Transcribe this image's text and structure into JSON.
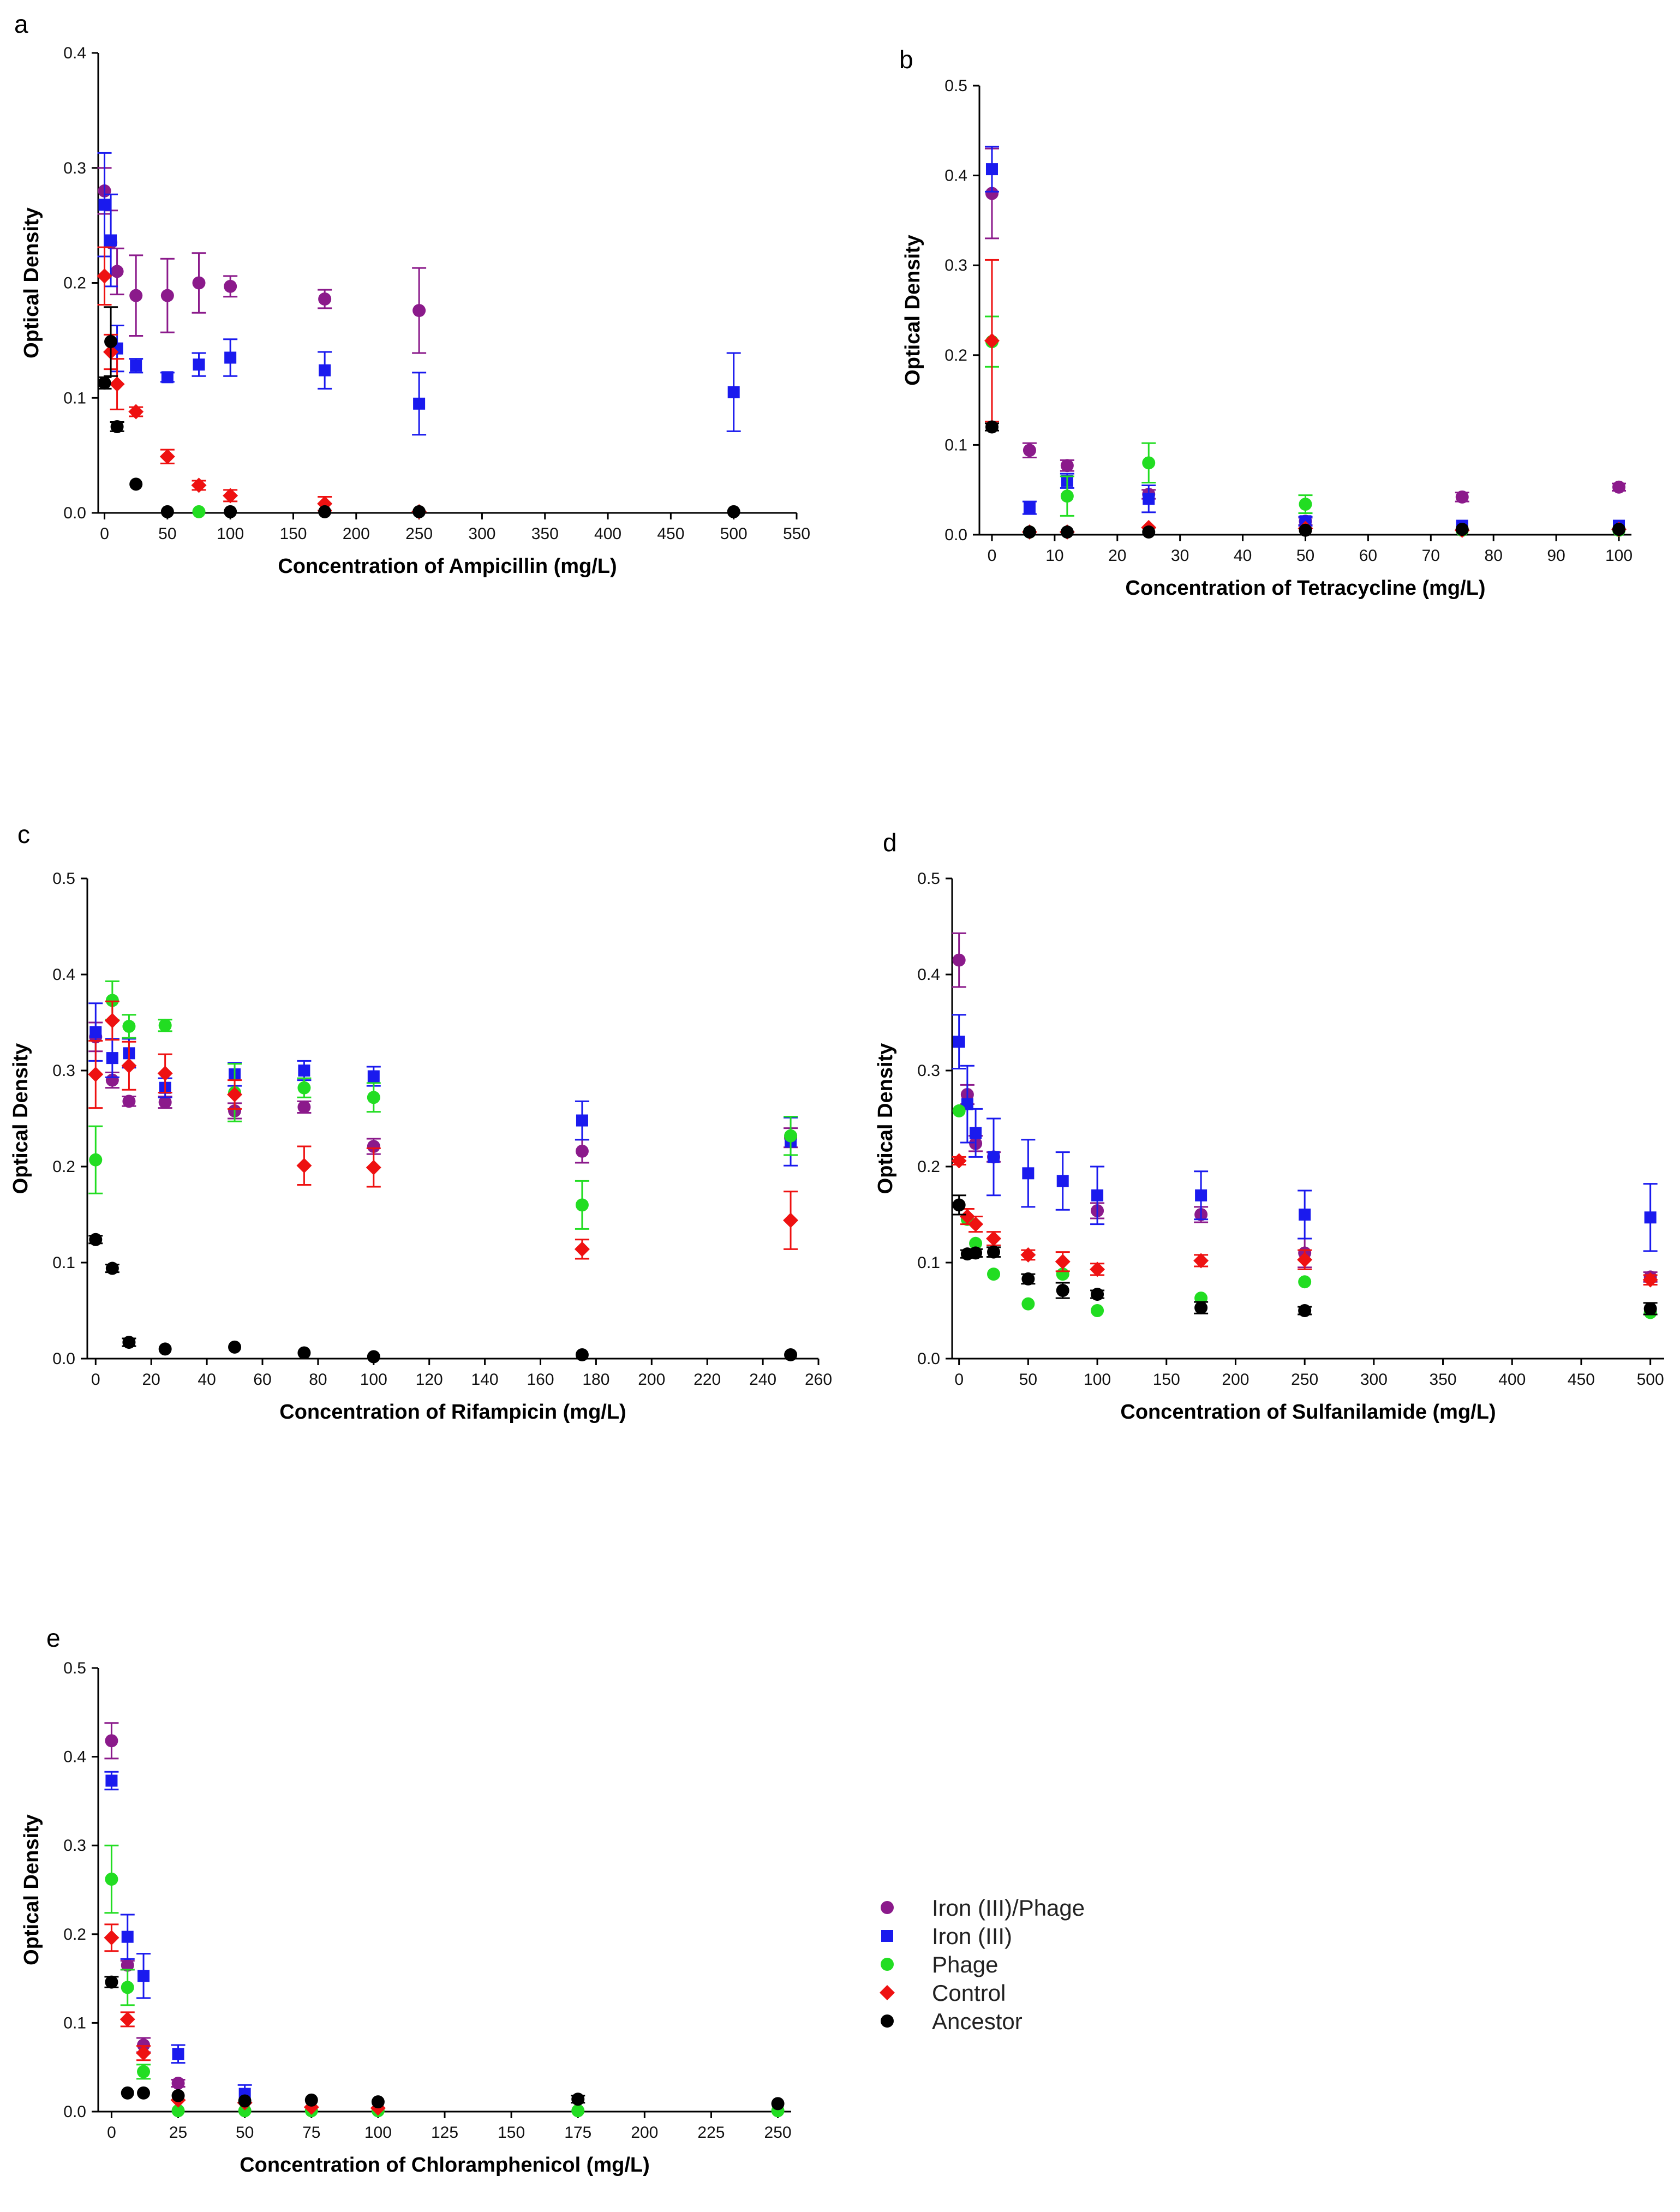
{
  "legend": [
    {
      "name": "Iron (III)/Phage",
      "color": "#8b1a8b",
      "marker": "circle"
    },
    {
      "name": "Iron (III)",
      "color": "#1a1aee",
      "marker": "square"
    },
    {
      "name": "Phage",
      "color": "#22dd22",
      "marker": "circle"
    },
    {
      "name": "Control",
      "color": "#ee1111",
      "marker": "diamond"
    },
    {
      "name": "Ancestor",
      "color": "#000000",
      "marker": "circle"
    }
  ],
  "chart_data": [
    {
      "panel": "a",
      "type": "scatter",
      "xlabel": "Concentration of Ampicillin (mg/L)",
      "ylabel": "Optical Density",
      "xlim": [
        -5,
        550
      ],
      "ylim": [
        0,
        0.4
      ],
      "xticks": [
        0,
        50,
        100,
        150,
        200,
        250,
        300,
        350,
        400,
        450,
        500,
        550
      ],
      "yticks": [
        0.0,
        0.1,
        0.2,
        0.3,
        0.4
      ],
      "ytick_decimals": 1,
      "series": [
        {
          "key": "iron_phage",
          "x": [
            0,
            5,
            10,
            25,
            50,
            75,
            100,
            175,
            250
          ],
          "y": [
            0.28,
            0.235,
            0.21,
            0.189,
            0.189,
            0.2,
            0.197,
            0.186,
            0.176
          ],
          "err": [
            0.02,
            0.028,
            0.02,
            0.035,
            0.032,
            0.026,
            0.009,
            0.008,
            0.037
          ]
        },
        {
          "key": "iron",
          "x": [
            0,
            5,
            10,
            25,
            50,
            75,
            100,
            175,
            250,
            500
          ],
          "y": [
            0.268,
            0.237,
            0.143,
            0.128,
            0.118,
            0.129,
            0.135,
            0.124,
            0.095,
            0.105
          ],
          "err": [
            0.045,
            0.04,
            0.02,
            0.006,
            0.004,
            0.01,
            0.016,
            0.016,
            0.027,
            0.034
          ]
        },
        {
          "key": "phage",
          "x": [
            75
          ],
          "y": [
            0.001
          ],
          "err": [
            0.001
          ]
        },
        {
          "key": "control",
          "x": [
            0,
            5,
            10,
            25,
            50,
            75,
            100,
            175,
            250
          ],
          "y": [
            0.206,
            0.14,
            0.112,
            0.088,
            0.049,
            0.024,
            0.015,
            0.008,
            0.001
          ],
          "err": [
            0.025,
            0.015,
            0.022,
            0.004,
            0.006,
            0.004,
            0.005,
            0.006,
            0.001
          ]
        },
        {
          "key": "ancestor",
          "x": [
            0,
            5,
            10,
            25,
            50,
            100,
            175,
            250,
            500
          ],
          "y": [
            0.113,
            0.149,
            0.075,
            0.025,
            0.001,
            0.001,
            0.001,
            0.001,
            0.001
          ],
          "err": [
            0.005,
            0.03,
            0.004,
            0.002,
            0.001,
            0.001,
            0.001,
            0.001,
            0.001
          ]
        }
      ]
    },
    {
      "panel": "b",
      "type": "scatter",
      "xlabel": "Concentration of Tetracycline (mg/L)",
      "ylabel": "Optical Density",
      "xlim": [
        -2,
        102
      ],
      "ylim": [
        0,
        0.5
      ],
      "xticks": [
        0,
        10,
        20,
        30,
        40,
        50,
        60,
        70,
        80,
        90,
        100
      ],
      "yticks": [
        0.0,
        0.1,
        0.2,
        0.3,
        0.4,
        0.5
      ],
      "ytick_decimals": 1,
      "series": [
        {
          "key": "iron_phage",
          "x": [
            0,
            6,
            12,
            25,
            50,
            75,
            100
          ],
          "y": [
            0.38,
            0.094,
            0.077,
            0.045,
            0.015,
            0.042,
            0.053
          ],
          "err": [
            0.05,
            0.008,
            0.006,
            0.005,
            0.004,
            0.005,
            0.004
          ]
        },
        {
          "key": "iron",
          "x": [
            0,
            6,
            12,
            25,
            50,
            75,
            100
          ],
          "y": [
            0.407,
            0.03,
            0.06,
            0.04,
            0.015,
            0.01,
            0.01
          ],
          "err": [
            0.025,
            0.007,
            0.008,
            0.015,
            0.005,
            0.003,
            0.003
          ]
        },
        {
          "key": "phage",
          "x": [
            0,
            6,
            12,
            25,
            50,
            75,
            100
          ],
          "y": [
            0.215,
            0.003,
            0.043,
            0.08,
            0.034,
            0.005,
            0.005
          ],
          "err": [
            0.028,
            0.002,
            0.022,
            0.022,
            0.01,
            0.002,
            0.002
          ]
        },
        {
          "key": "control",
          "x": [
            0,
            6,
            12,
            25,
            50,
            75,
            100
          ],
          "y": [
            0.216,
            0.003,
            0.003,
            0.008,
            0.007,
            0.005,
            0.006
          ],
          "err": [
            0.09,
            0.002,
            0.002,
            0.003,
            0.002,
            0.002,
            0.002
          ]
        },
        {
          "key": "ancestor",
          "x": [
            0,
            6,
            12,
            25,
            50,
            75,
            100
          ],
          "y": [
            0.12,
            0.003,
            0.003,
            0.003,
            0.005,
            0.006,
            0.006
          ],
          "err": [
            0.004,
            0.002,
            0.002,
            0.002,
            0.002,
            0.002,
            0.002
          ]
        }
      ]
    },
    {
      "panel": "c",
      "type": "scatter",
      "xlabel": "Concentration of Rifampicin (mg/L)",
      "ylabel": "Optical Density",
      "xlim": [
        -3,
        260
      ],
      "ylim": [
        0,
        0.5
      ],
      "xticks": [
        0,
        20,
        40,
        60,
        80,
        100,
        120,
        140,
        160,
        180,
        200,
        220,
        240,
        260
      ],
      "yticks": [
        0.0,
        0.1,
        0.2,
        0.3,
        0.4,
        0.5
      ],
      "ytick_decimals": 1,
      "series": [
        {
          "key": "iron_phage",
          "x": [
            0,
            6,
            12,
            25,
            50,
            75,
            100,
            175,
            250
          ],
          "y": [
            0.335,
            0.29,
            0.268,
            0.267,
            0.258,
            0.262,
            0.221,
            0.216,
            0.23
          ],
          "err": [
            0.015,
            0.008,
            0.005,
            0.006,
            0.008,
            0.006,
            0.008,
            0.012,
            0.01
          ]
        },
        {
          "key": "iron",
          "x": [
            0,
            6,
            12,
            25,
            50,
            75,
            100,
            175,
            250
          ],
          "y": [
            0.34,
            0.313,
            0.318,
            0.282,
            0.296,
            0.3,
            0.294,
            0.248,
            0.226
          ],
          "err": [
            0.03,
            0.02,
            0.015,
            0.01,
            0.012,
            0.01,
            0.01,
            0.02,
            0.025
          ]
        },
        {
          "key": "phage",
          "x": [
            0,
            6,
            12,
            25,
            50,
            75,
            100,
            175,
            250
          ],
          "y": [
            0.207,
            0.373,
            0.346,
            0.347,
            0.277,
            0.282,
            0.272,
            0.16,
            0.232
          ],
          "err": [
            0.035,
            0.02,
            0.012,
            0.006,
            0.03,
            0.01,
            0.015,
            0.025,
            0.02
          ]
        },
        {
          "key": "control",
          "x": [
            0,
            6,
            12,
            25,
            50,
            75,
            100,
            175,
            250
          ],
          "y": [
            0.296,
            0.352,
            0.305,
            0.297,
            0.275,
            0.201,
            0.199,
            0.114,
            0.144
          ],
          "err": [
            0.035,
            0.02,
            0.025,
            0.02,
            0.015,
            0.02,
            0.02,
            0.01,
            0.03
          ]
        },
        {
          "key": "ancestor",
          "x": [
            0,
            6,
            12,
            25,
            50,
            75,
            100,
            175,
            250
          ],
          "y": [
            0.124,
            0.094,
            0.017,
            0.01,
            0.012,
            0.006,
            0.002,
            0.004,
            0.004
          ],
          "err": [
            0.004,
            0.004,
            0.004,
            0.003,
            0.003,
            0.002,
            0.002,
            0.002,
            0.002
          ]
        }
      ]
    },
    {
      "panel": "d",
      "type": "scatter",
      "xlabel": "Concentration of Sulfanilamide (mg/L)",
      "ylabel": "Optical Density",
      "xlim": [
        -5,
        510
      ],
      "ylim": [
        0,
        0.5
      ],
      "xticks": [
        0,
        50,
        100,
        150,
        200,
        250,
        300,
        350,
        400,
        450,
        500
      ],
      "yticks": [
        0.0,
        0.1,
        0.2,
        0.3,
        0.4,
        0.5
      ],
      "ytick_decimals": 1,
      "series": [
        {
          "key": "iron_phage",
          "x": [
            0,
            6,
            12,
            25,
            100,
            175,
            250,
            500
          ],
          "y": [
            0.415,
            0.275,
            0.224,
            0.21,
            0.154,
            0.15,
            0.11,
            0.085
          ],
          "err": [
            0.028,
            0.01,
            0.008,
            0.005,
            0.008,
            0.008,
            0.015,
            0.005
          ]
        },
        {
          "key": "iron",
          "x": [
            0,
            6,
            12,
            25,
            50,
            75,
            100,
            175,
            250,
            500
          ],
          "y": [
            0.33,
            0.265,
            0.235,
            0.21,
            0.193,
            0.185,
            0.17,
            0.17,
            0.15,
            0.147
          ],
          "err": [
            0.028,
            0.04,
            0.025,
            0.04,
            0.035,
            0.03,
            0.03,
            0.025,
            0.025,
            0.035
          ]
        },
        {
          "key": "phage",
          "x": [
            0,
            6,
            12,
            25,
            50,
            75,
            100,
            175,
            250,
            500
          ],
          "y": [
            0.258,
            0.145,
            0.12,
            0.088,
            0.057,
            0.088,
            0.05,
            0.063,
            0.08,
            0.048
          ]
        },
        {
          "key": "control",
          "x": [
            0,
            6,
            12,
            25,
            50,
            75,
            100,
            175,
            250,
            500
          ],
          "y": [
            0.206,
            0.148,
            0.14,
            0.125,
            0.108,
            0.101,
            0.093,
            0.102,
            0.103,
            0.082
          ],
          "err": [
            0.004,
            0.008,
            0.008,
            0.007,
            0.005,
            0.01,
            0.006,
            0.006,
            0.01,
            0.005
          ]
        },
        {
          "key": "ancestor",
          "x": [
            0,
            6,
            12,
            25,
            50,
            75,
            100,
            175,
            250,
            500
          ],
          "y": [
            0.16,
            0.109,
            0.11,
            0.111,
            0.083,
            0.071,
            0.067,
            0.053,
            0.05,
            0.052
          ],
          "err": [
            0.01,
            0.004,
            0.004,
            0.005,
            0.005,
            0.008,
            0.004,
            0.006,
            0.004,
            0.006
          ]
        }
      ]
    },
    {
      "panel": "e",
      "type": "scatter",
      "xlabel": "Concentration of Chloramphenicol (mg/L)",
      "ylabel": "Optical Density",
      "xlim": [
        -5,
        255
      ],
      "ylim": [
        0,
        0.5
      ],
      "xticks": [
        0,
        25,
        50,
        75,
        100,
        125,
        150,
        175,
        200,
        225,
        250
      ],
      "yticks": [
        0.0,
        0.1,
        0.2,
        0.3,
        0.4,
        0.5
      ],
      "ytick_decimals": 1,
      "series": [
        {
          "key": "iron_phage",
          "x": [
            0,
            6,
            12,
            25
          ],
          "y": [
            0.418,
            0.165,
            0.075,
            0.032
          ],
          "err": [
            0.02,
            0.005,
            0.008,
            0.004
          ]
        },
        {
          "key": "iron",
          "x": [
            0,
            6,
            12,
            25,
            50
          ],
          "y": [
            0.373,
            0.197,
            0.153,
            0.065,
            0.02
          ],
          "err": [
            0.01,
            0.025,
            0.025,
            0.01,
            0.01
          ]
        },
        {
          "key": "phage",
          "x": [
            0,
            6,
            12,
            25,
            50,
            75,
            100,
            175,
            250
          ],
          "y": [
            0.262,
            0.14,
            0.045,
            0.001,
            0.001,
            0.001,
            0.001,
            0.001,
            0.001
          ],
          "err": [
            0.038,
            0.02,
            0.008,
            0.001,
            0.001,
            0.001,
            0.001,
            0.001,
            0.001
          ]
        },
        {
          "key": "control",
          "x": [
            0,
            6,
            12,
            25,
            50,
            75,
            100
          ],
          "y": [
            0.196,
            0.104,
            0.066,
            0.013,
            0.01,
            0.005,
            0.004
          ],
          "err": [
            0.015,
            0.008,
            0.008,
            0.003,
            0.003,
            0.002,
            0.002
          ]
        },
        {
          "key": "ancestor",
          "x": [
            0,
            6,
            12,
            25,
            50,
            75,
            100,
            175,
            250
          ],
          "y": [
            0.146,
            0.021,
            0.021,
            0.018,
            0.012,
            0.013,
            0.011,
            0.014,
            0.009
          ],
          "err": [
            0.006,
            0.003,
            0.003,
            0.003,
            0.003,
            0.003,
            0.003,
            0.004,
            0.003
          ]
        }
      ]
    }
  ]
}
